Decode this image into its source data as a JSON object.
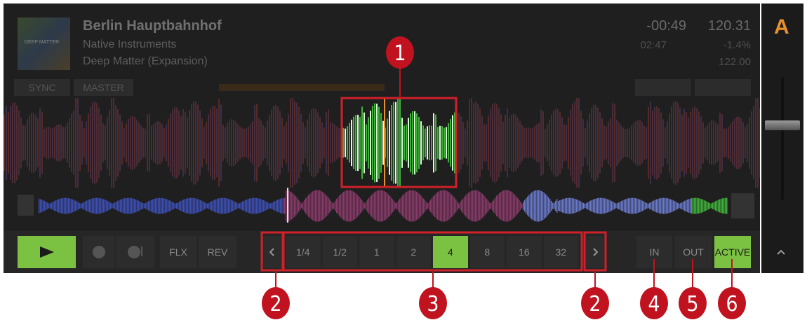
{
  "header": {
    "cover_label": "DEEP MATTER",
    "title": "Berlin Hauptbahnhof",
    "artist": "Native Instruments",
    "album": "Deep Matter (Expansion)",
    "remaining_time": "-00:49",
    "total_time": "02:47",
    "bpm": "120.31",
    "pitch": "-1.4%",
    "original_bpm": "122.00",
    "deck": "A"
  },
  "sync_buttons": [
    "SYNC",
    "MASTER"
  ],
  "transport": {
    "flux": "FLX",
    "reverse": "REV"
  },
  "loop": {
    "sizes": [
      "1/4",
      "1/2",
      "1",
      "2",
      "4",
      "8",
      "16",
      "32"
    ],
    "selected_index": 4,
    "in": "IN",
    "out": "OUT",
    "active": "ACTIVE"
  },
  "callouts": [
    "1",
    "2",
    "3",
    "2",
    "4",
    "5",
    "6"
  ]
}
